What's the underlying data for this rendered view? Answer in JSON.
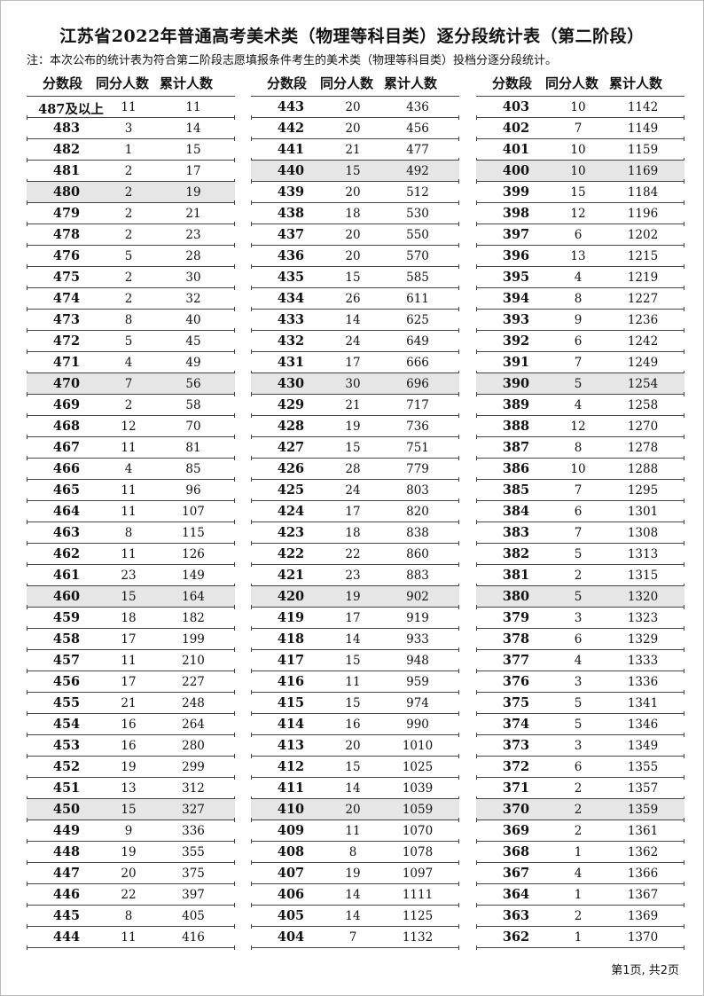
{
  "title": "江苏省2022年普通高考美术类（物理等科目类）逐分段统计表（第二阶段）",
  "note": "注：本次公布的统计表为符合第二阶段志愿填报条件考生的美术类（物理等科目类）投档分逐分段统计。",
  "headers": [
    "分数段",
    "同分人数",
    "累计人数"
  ],
  "highlight_color": "#e6e6e6",
  "columns": [
    [
      [
        "487及以上",
        "11",
        "11"
      ],
      [
        "483",
        "3",
        "14"
      ],
      [
        "482",
        "1",
        "15"
      ],
      [
        "481",
        "2",
        "17"
      ],
      [
        "480",
        "2",
        "19"
      ],
      [
        "479",
        "2",
        "21"
      ],
      [
        "478",
        "2",
        "23"
      ],
      [
        "476",
        "5",
        "28"
      ],
      [
        "475",
        "2",
        "30"
      ],
      [
        "474",
        "2",
        "32"
      ],
      [
        "473",
        "8",
        "40"
      ],
      [
        "472",
        "5",
        "45"
      ],
      [
        "471",
        "4",
        "49"
      ],
      [
        "470",
        "7",
        "56"
      ],
      [
        "469",
        "2",
        "58"
      ],
      [
        "468",
        "12",
        "70"
      ],
      [
        "467",
        "11",
        "81"
      ],
      [
        "466",
        "4",
        "85"
      ],
      [
        "465",
        "11",
        "96"
      ],
      [
        "464",
        "11",
        "107"
      ],
      [
        "463",
        "8",
        "115"
      ],
      [
        "462",
        "11",
        "126"
      ],
      [
        "461",
        "23",
        "149"
      ],
      [
        "460",
        "15",
        "164"
      ],
      [
        "459",
        "18",
        "182"
      ],
      [
        "458",
        "17",
        "199"
      ],
      [
        "457",
        "11",
        "210"
      ],
      [
        "456",
        "17",
        "227"
      ],
      [
        "455",
        "21",
        "248"
      ],
      [
        "454",
        "16",
        "264"
      ],
      [
        "453",
        "16",
        "280"
      ],
      [
        "452",
        "19",
        "299"
      ],
      [
        "451",
        "13",
        "312"
      ],
      [
        "450",
        "15",
        "327"
      ],
      [
        "449",
        "9",
        "336"
      ],
      [
        "448",
        "19",
        "355"
      ],
      [
        "447",
        "20",
        "375"
      ],
      [
        "446",
        "22",
        "397"
      ],
      [
        "445",
        "8",
        "405"
      ],
      [
        "444",
        "11",
        "416"
      ]
    ],
    [
      [
        "443",
        "20",
        "436"
      ],
      [
        "442",
        "20",
        "456"
      ],
      [
        "441",
        "21",
        "477"
      ],
      [
        "440",
        "15",
        "492"
      ],
      [
        "439",
        "20",
        "512"
      ],
      [
        "438",
        "18",
        "530"
      ],
      [
        "437",
        "20",
        "550"
      ],
      [
        "436",
        "20",
        "570"
      ],
      [
        "435",
        "15",
        "585"
      ],
      [
        "434",
        "26",
        "611"
      ],
      [
        "433",
        "14",
        "625"
      ],
      [
        "432",
        "24",
        "649"
      ],
      [
        "431",
        "17",
        "666"
      ],
      [
        "430",
        "30",
        "696"
      ],
      [
        "429",
        "21",
        "717"
      ],
      [
        "428",
        "19",
        "736"
      ],
      [
        "427",
        "15",
        "751"
      ],
      [
        "426",
        "28",
        "779"
      ],
      [
        "425",
        "24",
        "803"
      ],
      [
        "424",
        "17",
        "820"
      ],
      [
        "423",
        "18",
        "838"
      ],
      [
        "422",
        "22",
        "860"
      ],
      [
        "421",
        "23",
        "883"
      ],
      [
        "420",
        "19",
        "902"
      ],
      [
        "419",
        "17",
        "919"
      ],
      [
        "418",
        "14",
        "933"
      ],
      [
        "417",
        "15",
        "948"
      ],
      [
        "416",
        "11",
        "959"
      ],
      [
        "415",
        "15",
        "974"
      ],
      [
        "414",
        "16",
        "990"
      ],
      [
        "413",
        "20",
        "1010"
      ],
      [
        "412",
        "15",
        "1025"
      ],
      [
        "411",
        "14",
        "1039"
      ],
      [
        "410",
        "20",
        "1059"
      ],
      [
        "409",
        "11",
        "1070"
      ],
      [
        "408",
        "8",
        "1078"
      ],
      [
        "407",
        "19",
        "1097"
      ],
      [
        "406",
        "14",
        "1111"
      ],
      [
        "405",
        "14",
        "1125"
      ],
      [
        "404",
        "7",
        "1132"
      ]
    ],
    [
      [
        "403",
        "10",
        "1142"
      ],
      [
        "402",
        "7",
        "1149"
      ],
      [
        "401",
        "10",
        "1159"
      ],
      [
        "400",
        "10",
        "1169"
      ],
      [
        "399",
        "15",
        "1184"
      ],
      [
        "398",
        "12",
        "1196"
      ],
      [
        "397",
        "6",
        "1202"
      ],
      [
        "396",
        "13",
        "1215"
      ],
      [
        "395",
        "4",
        "1219"
      ],
      [
        "394",
        "8",
        "1227"
      ],
      [
        "393",
        "9",
        "1236"
      ],
      [
        "392",
        "6",
        "1242"
      ],
      [
        "391",
        "7",
        "1249"
      ],
      [
        "390",
        "5",
        "1254"
      ],
      [
        "389",
        "4",
        "1258"
      ],
      [
        "388",
        "12",
        "1270"
      ],
      [
        "387",
        "8",
        "1278"
      ],
      [
        "386",
        "10",
        "1288"
      ],
      [
        "385",
        "7",
        "1295"
      ],
      [
        "384",
        "6",
        "1301"
      ],
      [
        "383",
        "7",
        "1308"
      ],
      [
        "382",
        "5",
        "1313"
      ],
      [
        "381",
        "2",
        "1315"
      ],
      [
        "380",
        "5",
        "1320"
      ],
      [
        "379",
        "3",
        "1323"
      ],
      [
        "378",
        "6",
        "1329"
      ],
      [
        "377",
        "4",
        "1333"
      ],
      [
        "376",
        "3",
        "1336"
      ],
      [
        "375",
        "5",
        "1341"
      ],
      [
        "374",
        "5",
        "1346"
      ],
      [
        "373",
        "3",
        "1349"
      ],
      [
        "372",
        "6",
        "1355"
      ],
      [
        "371",
        "2",
        "1357"
      ],
      [
        "370",
        "2",
        "1359"
      ],
      [
        "369",
        "2",
        "1361"
      ],
      [
        "368",
        "1",
        "1362"
      ],
      [
        "367",
        "4",
        "1366"
      ],
      [
        "364",
        "1",
        "1367"
      ],
      [
        "363",
        "2",
        "1369"
      ],
      [
        "362",
        "1",
        "1370"
      ]
    ]
  ],
  "footer": "第1页, 共2页"
}
